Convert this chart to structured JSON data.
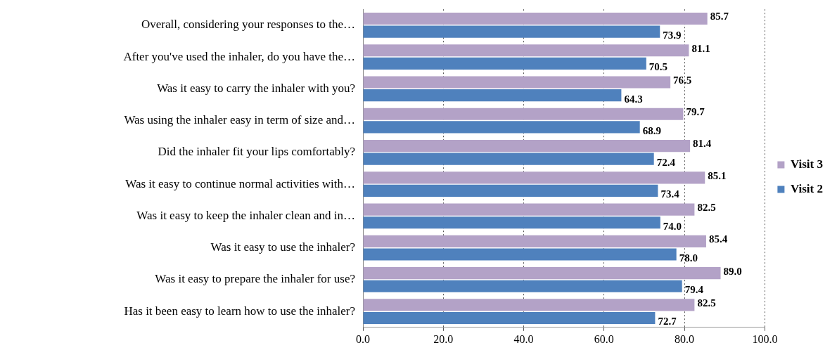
{
  "chart_data": {
    "type": "bar",
    "orientation": "horizontal",
    "categories": [
      "Overall, considering your responses to the…",
      "After you've used the inhaler, do you have the…",
      "Was it easy to carry the inhaler with you?",
      "Was using the inhaler easy in term of size and…",
      "Did the inhaler fit your lips comfortably?",
      "Was it easy to continue normal activities with…",
      "Was it easy to keep the inhaler clean and in…",
      "Was it easy to use the inhaler?",
      "Was it easy to prepare the inhaler for use?",
      "Has it been easy to learn how to use the inhaler?"
    ],
    "series": [
      {
        "name": "Visit 3",
        "color": "#b3a2c7",
        "values": [
          85.7,
          81.1,
          76.5,
          79.7,
          81.4,
          85.1,
          82.5,
          85.4,
          89.0,
          82.5
        ],
        "value_labels": [
          "85.7",
          "81.1",
          "76.5",
          "79.7",
          "81.4",
          "85.1",
          "82.5",
          "85.4",
          "89.0",
          "82.5"
        ]
      },
      {
        "name": "Visit 2",
        "color": "#4f81bd",
        "values": [
          73.9,
          70.5,
          64.3,
          68.9,
          72.4,
          73.4,
          74.0,
          78.0,
          79.4,
          72.7
        ],
        "value_labels": [
          "73.9",
          "70.5",
          "64.3",
          "68.9",
          "72.4",
          "73.4",
          "74.0",
          "78.0",
          "79.4",
          "72.7"
        ]
      }
    ],
    "xlim": [
      0,
      100
    ],
    "xticks": [
      {
        "value": 0,
        "label": "0.0"
      },
      {
        "value": 20,
        "label": "20.0"
      },
      {
        "value": 40,
        "label": "40.0"
      },
      {
        "value": 60,
        "label": "60.0"
      },
      {
        "value": 80,
        "label": "80.0"
      },
      {
        "value": 100,
        "label": "100.0"
      }
    ],
    "grid": "x",
    "legend": "right"
  }
}
